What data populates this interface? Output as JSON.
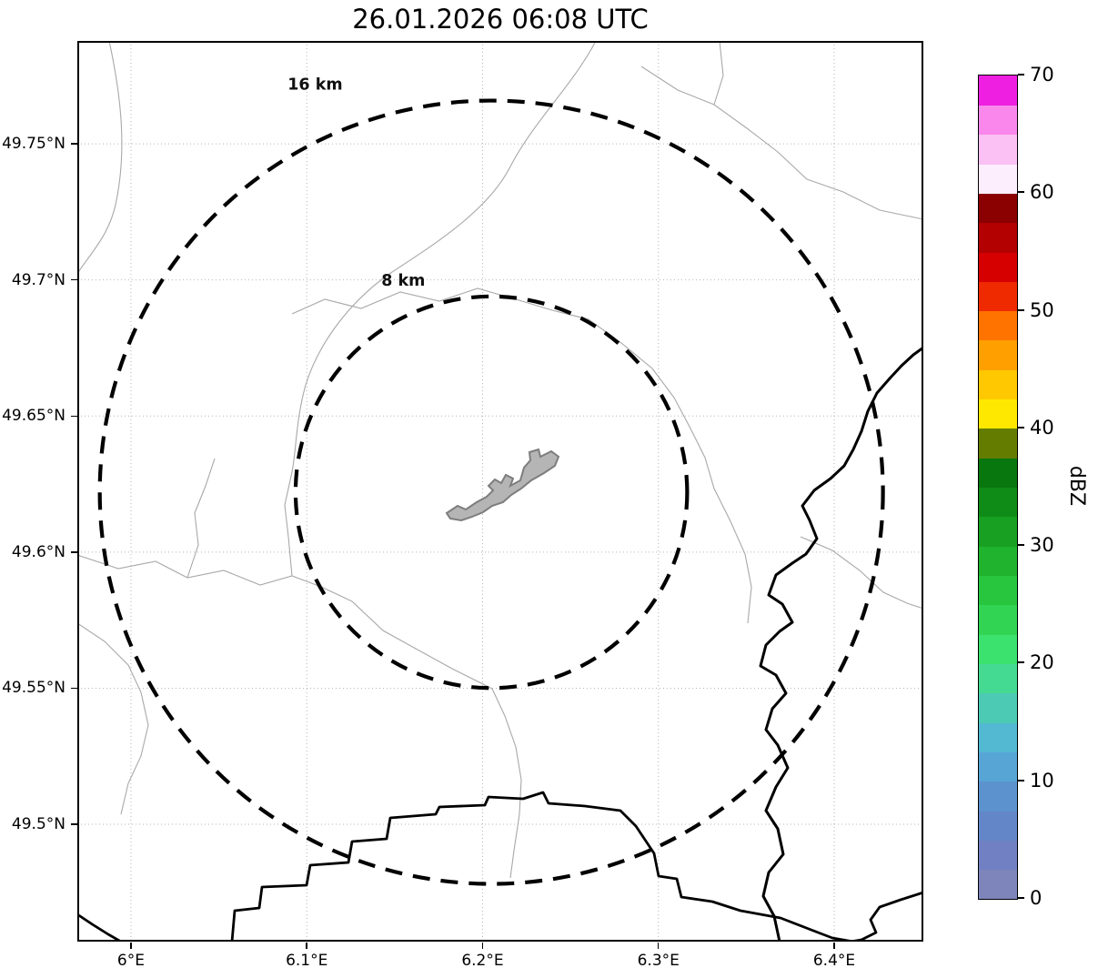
{
  "title": "26.01.2026 06:08 UTC",
  "chart_data": {
    "type": "map-radar",
    "title": "26.01.2026 06:08 UTC",
    "x_range": [
      5.9695,
      6.4507
    ],
    "y_range": [
      49.4569,
      49.7878
    ],
    "x_ticks": [
      {
        "value": 6.0,
        "label": "6°E"
      },
      {
        "value": 6.1,
        "label": "6.1°E"
      },
      {
        "value": 6.2,
        "label": "6.2°E"
      },
      {
        "value": 6.3,
        "label": "6.3°E"
      },
      {
        "value": 6.4,
        "label": "6.4°E"
      }
    ],
    "y_ticks": [
      {
        "value": 49.75,
        "label": "49.75°N"
      },
      {
        "value": 49.7,
        "label": "49.7°N"
      },
      {
        "value": 49.65,
        "label": "49.65°N"
      },
      {
        "value": 49.6,
        "label": "49.6°N"
      },
      {
        "value": 49.55,
        "label": "49.55°N"
      },
      {
        "value": 49.5,
        "label": "49.5°N"
      }
    ],
    "grid": true,
    "range_rings": {
      "center_lon": 6.205,
      "center_lat": 49.622,
      "rings": [
        {
          "radius_km": 16,
          "label": "16 km"
        },
        {
          "radius_km": 8,
          "label": "8 km"
        }
      ]
    },
    "map_features": {
      "airport_outline_color": "#b5b5b5",
      "country_border_color": "#000000",
      "admin_border_color": "#a8a8a8",
      "grid_color": "#b5b5b5"
    },
    "colorbar": {
      "label": "dBZ",
      "min": 0,
      "max": 70,
      "ticks": [
        0,
        10,
        20,
        30,
        40,
        50,
        60,
        70
      ],
      "segments": [
        {
          "from": 0,
          "to": 2.5,
          "color": "#7d85bb"
        },
        {
          "from": 2.5,
          "to": 5,
          "color": "#7080c2"
        },
        {
          "from": 5,
          "to": 7.5,
          "color": "#6386c9"
        },
        {
          "from": 7.5,
          "to": 10,
          "color": "#5c93cf"
        },
        {
          "from": 10,
          "to": 12.5,
          "color": "#57a5d5"
        },
        {
          "from": 12.5,
          "to": 15,
          "color": "#53b9d2"
        },
        {
          "from": 15,
          "to": 17.5,
          "color": "#4ccab4"
        },
        {
          "from": 17.5,
          "to": 20,
          "color": "#45da92"
        },
        {
          "from": 20,
          "to": 22.5,
          "color": "#3be26e"
        },
        {
          "from": 22.5,
          "to": 25,
          "color": "#31d553"
        },
        {
          "from": 25,
          "to": 27.5,
          "color": "#28c53f"
        },
        {
          "from": 27.5,
          "to": 30,
          "color": "#1fb32e"
        },
        {
          "from": 30,
          "to": 32.5,
          "color": "#17a021"
        },
        {
          "from": 32.5,
          "to": 35,
          "color": "#0f8c17"
        },
        {
          "from": 35,
          "to": 37.5,
          "color": "#08770e"
        },
        {
          "from": 37.5,
          "to": 40,
          "color": "#647c00"
        },
        {
          "from": 40,
          "to": 42.5,
          "color": "#ffe800"
        },
        {
          "from": 42.5,
          "to": 45,
          "color": "#ffc800"
        },
        {
          "from": 45,
          "to": 47.5,
          "color": "#ffa000"
        },
        {
          "from": 47.5,
          "to": 50,
          "color": "#ff7300"
        },
        {
          "from": 50,
          "to": 52.5,
          "color": "#ef2a00"
        },
        {
          "from": 52.5,
          "to": 55,
          "color": "#d60000"
        },
        {
          "from": 55,
          "to": 57.5,
          "color": "#b30000"
        },
        {
          "from": 57.5,
          "to": 60,
          "color": "#8b0000"
        },
        {
          "from": 60,
          "to": 62.5,
          "color": "#fdeefd"
        },
        {
          "from": 62.5,
          "to": 65,
          "color": "#fbc0f4"
        },
        {
          "from": 65,
          "to": 67.5,
          "color": "#f987ec"
        },
        {
          "from": 67.5,
          "to": 70,
          "color": "#ee1fe0"
        }
      ]
    }
  }
}
